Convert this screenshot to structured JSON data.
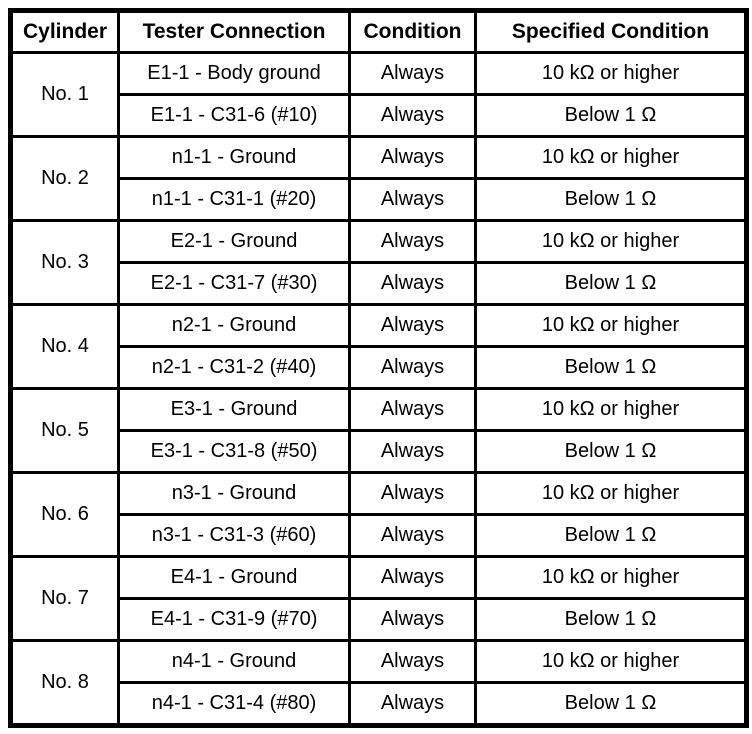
{
  "page": {
    "background": "#ffffff",
    "text_color": "#000000",
    "border_color": "#000000"
  },
  "table": {
    "headers": [
      "Cylinder",
      "Tester Connection",
      "Condition",
      "Specified Condition"
    ],
    "groups": [
      {
        "cylinder": "No. 1",
        "rows": [
          {
            "tester_connection": "E1-1 - Body ground",
            "condition": "Always",
            "specified_condition": "10 kΩ or higher"
          },
          {
            "tester_connection": "E1-1 - C31-6 (#10)",
            "condition": "Always",
            "specified_condition": "Below 1 Ω"
          }
        ]
      },
      {
        "cylinder": "No. 2",
        "rows": [
          {
            "tester_connection": "n1-1 - Ground",
            "condition": "Always",
            "specified_condition": "10 kΩ or higher"
          },
          {
            "tester_connection": "n1-1 - C31-1 (#20)",
            "condition": "Always",
            "specified_condition": "Below 1 Ω"
          }
        ]
      },
      {
        "cylinder": "No. 3",
        "rows": [
          {
            "tester_connection": "E2-1 - Ground",
            "condition": "Always",
            "specified_condition": "10 kΩ or higher"
          },
          {
            "tester_connection": "E2-1 - C31-7 (#30)",
            "condition": "Always",
            "specified_condition": "Below 1 Ω"
          }
        ]
      },
      {
        "cylinder": "No. 4",
        "rows": [
          {
            "tester_connection": "n2-1 - Ground",
            "condition": "Always",
            "specified_condition": "10 kΩ or higher"
          },
          {
            "tester_connection": "n2-1 - C31-2 (#40)",
            "condition": "Always",
            "specified_condition": "Below 1 Ω"
          }
        ]
      },
      {
        "cylinder": "No. 5",
        "rows": [
          {
            "tester_connection": "E3-1 - Ground",
            "condition": "Always",
            "specified_condition": "10 kΩ or higher"
          },
          {
            "tester_connection": "E3-1 - C31-8 (#50)",
            "condition": "Always",
            "specified_condition": "Below 1 Ω"
          }
        ]
      },
      {
        "cylinder": "No. 6",
        "rows": [
          {
            "tester_connection": "n3-1 - Ground",
            "condition": "Always",
            "specified_condition": "10 kΩ or higher"
          },
          {
            "tester_connection": "n3-1 - C31-3 (#60)",
            "condition": "Always",
            "specified_condition": "Below 1 Ω"
          }
        ]
      },
      {
        "cylinder": "No. 7",
        "rows": [
          {
            "tester_connection": "E4-1 - Ground",
            "condition": "Always",
            "specified_condition": "10 kΩ or higher"
          },
          {
            "tester_connection": "E4-1 - C31-9 (#70)",
            "condition": "Always",
            "specified_condition": "Below 1 Ω"
          }
        ]
      },
      {
        "cylinder": "No. 8",
        "rows": [
          {
            "tester_connection": "n4-1 - Ground",
            "condition": "Always",
            "specified_condition": "10 kΩ or higher"
          },
          {
            "tester_connection": "n4-1 - C31-4 (#80)",
            "condition": "Always",
            "specified_condition": "Below 1 Ω"
          }
        ]
      }
    ]
  }
}
